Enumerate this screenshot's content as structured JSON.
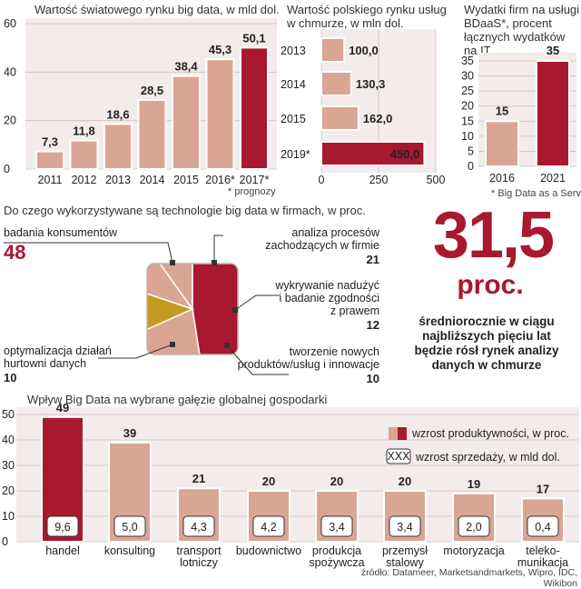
{
  "colors": {
    "salmon": "#dba594",
    "crimson": "#a8182f",
    "mustard": "#c49a22",
    "panel": "#f3ecea",
    "grid": "#c9c2bf"
  },
  "chart_data": [
    {
      "type": "bar",
      "title": "Wartość światowego rynku big data, w mld dol.",
      "categories": [
        "2011",
        "2012",
        "2013",
        "2014",
        "2015",
        "2016*",
        "2017*"
      ],
      "values": [
        7.3,
        11.8,
        18.6,
        28.5,
        38.4,
        45.3,
        50.1
      ],
      "value_labels": [
        "7,3",
        "11,8",
        "18,6",
        "28,5",
        "38,4",
        "45,3",
        "50,1"
      ],
      "yticks": [
        "0",
        "20",
        "40",
        "60"
      ],
      "ylim": [
        0,
        60
      ],
      "footnote": "* prognozy"
    },
    {
      "type": "bar",
      "orientation": "horizontal",
      "title": "Wartość polskiego rynku usług w chmurze, w mln dol.",
      "categories": [
        "2013",
        "2014",
        "2015",
        "2019*"
      ],
      "values": [
        100,
        130.3,
        162,
        450
      ],
      "value_labels": [
        "100,0",
        "130,3",
        "162,0",
        "450,0"
      ],
      "xticks": [
        "0",
        "250",
        "500"
      ],
      "xlim": [
        0,
        500
      ]
    },
    {
      "type": "bar",
      "title": "Wydatki firm na usługi BDaaS*, procent łącznych wydatków na IT",
      "categories": [
        "2016",
        "2021"
      ],
      "values": [
        15,
        35
      ],
      "value_labels": [
        "15",
        "35"
      ],
      "yticks": [
        "0",
        "5",
        "10",
        "15",
        "20",
        "25",
        "30",
        "35"
      ],
      "ylim": [
        0,
        35
      ],
      "footnote": "* Big Data as a Service"
    },
    {
      "type": "pie",
      "title": "Do czego wykorzystywane są technologie big data w firmach, w proc.",
      "slices": [
        {
          "label": "badania konsumentów",
          "value": 48,
          "display": "48"
        },
        {
          "label": "analiza procesów zachodzących w firmie",
          "value": 21,
          "display": "21"
        },
        {
          "label": "wykrywanie nadużyć i badanie zgodności z prawem",
          "value": 12,
          "display": "12"
        },
        {
          "label": "tworzenie nowych produktów/usług i innowacje",
          "value": 10,
          "display": "10"
        },
        {
          "label": "optymalizacja działań hurtowni danych",
          "value": 10,
          "display": "10"
        }
      ]
    },
    {
      "type": "bar",
      "title": "Wpływ Big Data na wybrane gałęzie globalnej gospodarki",
      "categories": [
        "handel",
        "konsulting",
        "transport lotniczy",
        "budownictwo",
        "produkcja spożywcza",
        "przemysł stalowy",
        "motoryzacja",
        "teleko- munikacja"
      ],
      "category_lines": [
        [
          "handel"
        ],
        [
          "konsulting"
        ],
        [
          "transport",
          "lotniczy"
        ],
        [
          "budownictwo"
        ],
        [
          "produkcja",
          "spożywcza"
        ],
        [
          "przemysł",
          "stalowy"
        ],
        [
          "motoryzacja"
        ],
        [
          "teleko-",
          "munikacja"
        ]
      ],
      "series": [
        {
          "name": "wzrost produktywności, w proc.",
          "values": [
            49,
            39,
            21,
            20,
            20,
            20,
            19,
            17
          ],
          "labels": [
            "49",
            "39",
            "21",
            "20",
            "20",
            "20",
            "19",
            "17"
          ]
        },
        {
          "name": "wzrost sprzedaży, w mld dol.",
          "values": [
            9.6,
            5.0,
            4.3,
            4.2,
            3.4,
            3.4,
            2.0,
            0.4
          ],
          "labels": [
            "9,6",
            "5,0",
            "4,3",
            "4,2",
            "3,4",
            "3,4",
            "2,0",
            "0,4"
          ]
        }
      ],
      "legend_box_label": "XXX",
      "yticks": [
        "0",
        "10",
        "20",
        "30",
        "40",
        "50"
      ],
      "ylim": [
        0,
        50
      ]
    }
  ],
  "highlight": {
    "number": "31,5",
    "unit": "proc.",
    "text": "średniorocznie w ciągu najbliższych pięciu lat będzie rósł rynek analizy danych w chmurze"
  },
  "source": "źródło: Datameer, Marketsandmarkets, Wipro, IDC, Wikibon"
}
